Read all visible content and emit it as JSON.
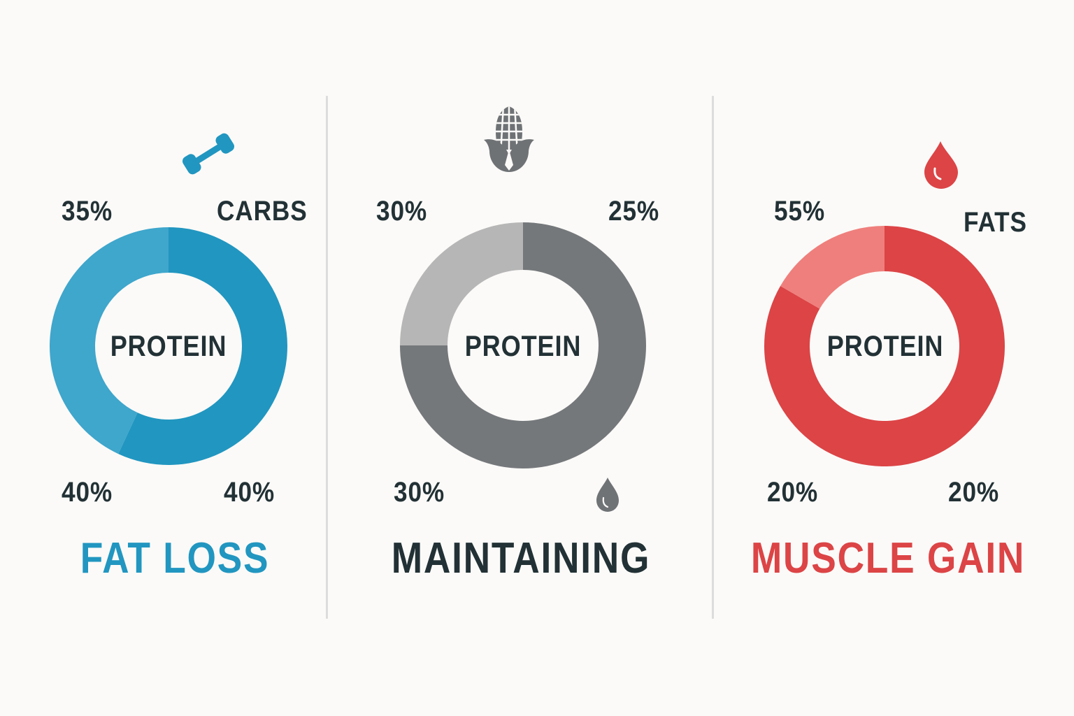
{
  "colors": {
    "background": "#fbfaf8",
    "divider": "#dcdcdc",
    "text_dark": "#223135",
    "blue_dark": "#2196c0",
    "blue_light": "#3fa6cc",
    "grey_dark": "#75787b",
    "grey_light": "#b6b6b6",
    "red_dark": "#dc4446",
    "red_light": "#ef7f7c"
  },
  "panels": [
    {
      "title": "FAT LOSS",
      "title_color": "#2196c0",
      "center_label": "PROTEIN",
      "icon": "dumbbell-icon",
      "labels": {
        "top_left": "35%",
        "top_right": "CARBS",
        "bottom_left": "40%",
        "bottom_right": "40%"
      }
    },
    {
      "title": "MAINTAINING",
      "title_color": "#223135",
      "center_label": "PROTEIN",
      "icon": "corn-icon",
      "secondary_icon": "droplet-icon",
      "labels": {
        "top_left": "30%",
        "top_right": "25%",
        "bottom_left": "30%"
      }
    },
    {
      "title": "MUSCLE GAIN",
      "title_color": "#dc4446",
      "center_label": "PROTEIN",
      "icon": "droplet-icon",
      "labels": {
        "top_left": "55%",
        "top_right": "FATS",
        "bottom_left": "20%",
        "bottom_right": "20%"
      }
    }
  ],
  "chart_data": [
    {
      "type": "pie",
      "title": "FAT LOSS",
      "center_label": "PROTEIN",
      "donut": true,
      "segments": [
        {
          "label": "dark segment",
          "start_deg": 0,
          "end_deg": 205,
          "color": "#2196c0",
          "share_pct": 57
        },
        {
          "label": "light segment",
          "start_deg": 205,
          "end_deg": 360,
          "color": "#3fa6cc",
          "share_pct": 43
        }
      ],
      "annotations": [
        "35%",
        "CARBS",
        "40%",
        "40%"
      ]
    },
    {
      "type": "pie",
      "title": "MAINTAINING",
      "center_label": "PROTEIN",
      "donut": true,
      "segments": [
        {
          "label": "dark segment",
          "start_deg": 0,
          "end_deg": 270,
          "color": "#75787b",
          "share_pct": 75
        },
        {
          "label": "light segment",
          "start_deg": 270,
          "end_deg": 360,
          "color": "#b6b6b6",
          "share_pct": 25
        }
      ],
      "annotations": [
        "30%",
        "25%",
        "30%"
      ]
    },
    {
      "type": "pie",
      "title": "MUSCLE GAIN",
      "center_label": "PROTEIN",
      "donut": true,
      "segments": [
        {
          "label": "dark segment",
          "start_deg": 0,
          "end_deg": 300,
          "color": "#dc4446",
          "share_pct": 83
        },
        {
          "label": "light segment",
          "start_deg": 300,
          "end_deg": 360,
          "color": "#ef7f7c",
          "share_pct": 17
        }
      ],
      "annotations": [
        "55%",
        "FATS",
        "20%",
        "20%"
      ]
    }
  ]
}
